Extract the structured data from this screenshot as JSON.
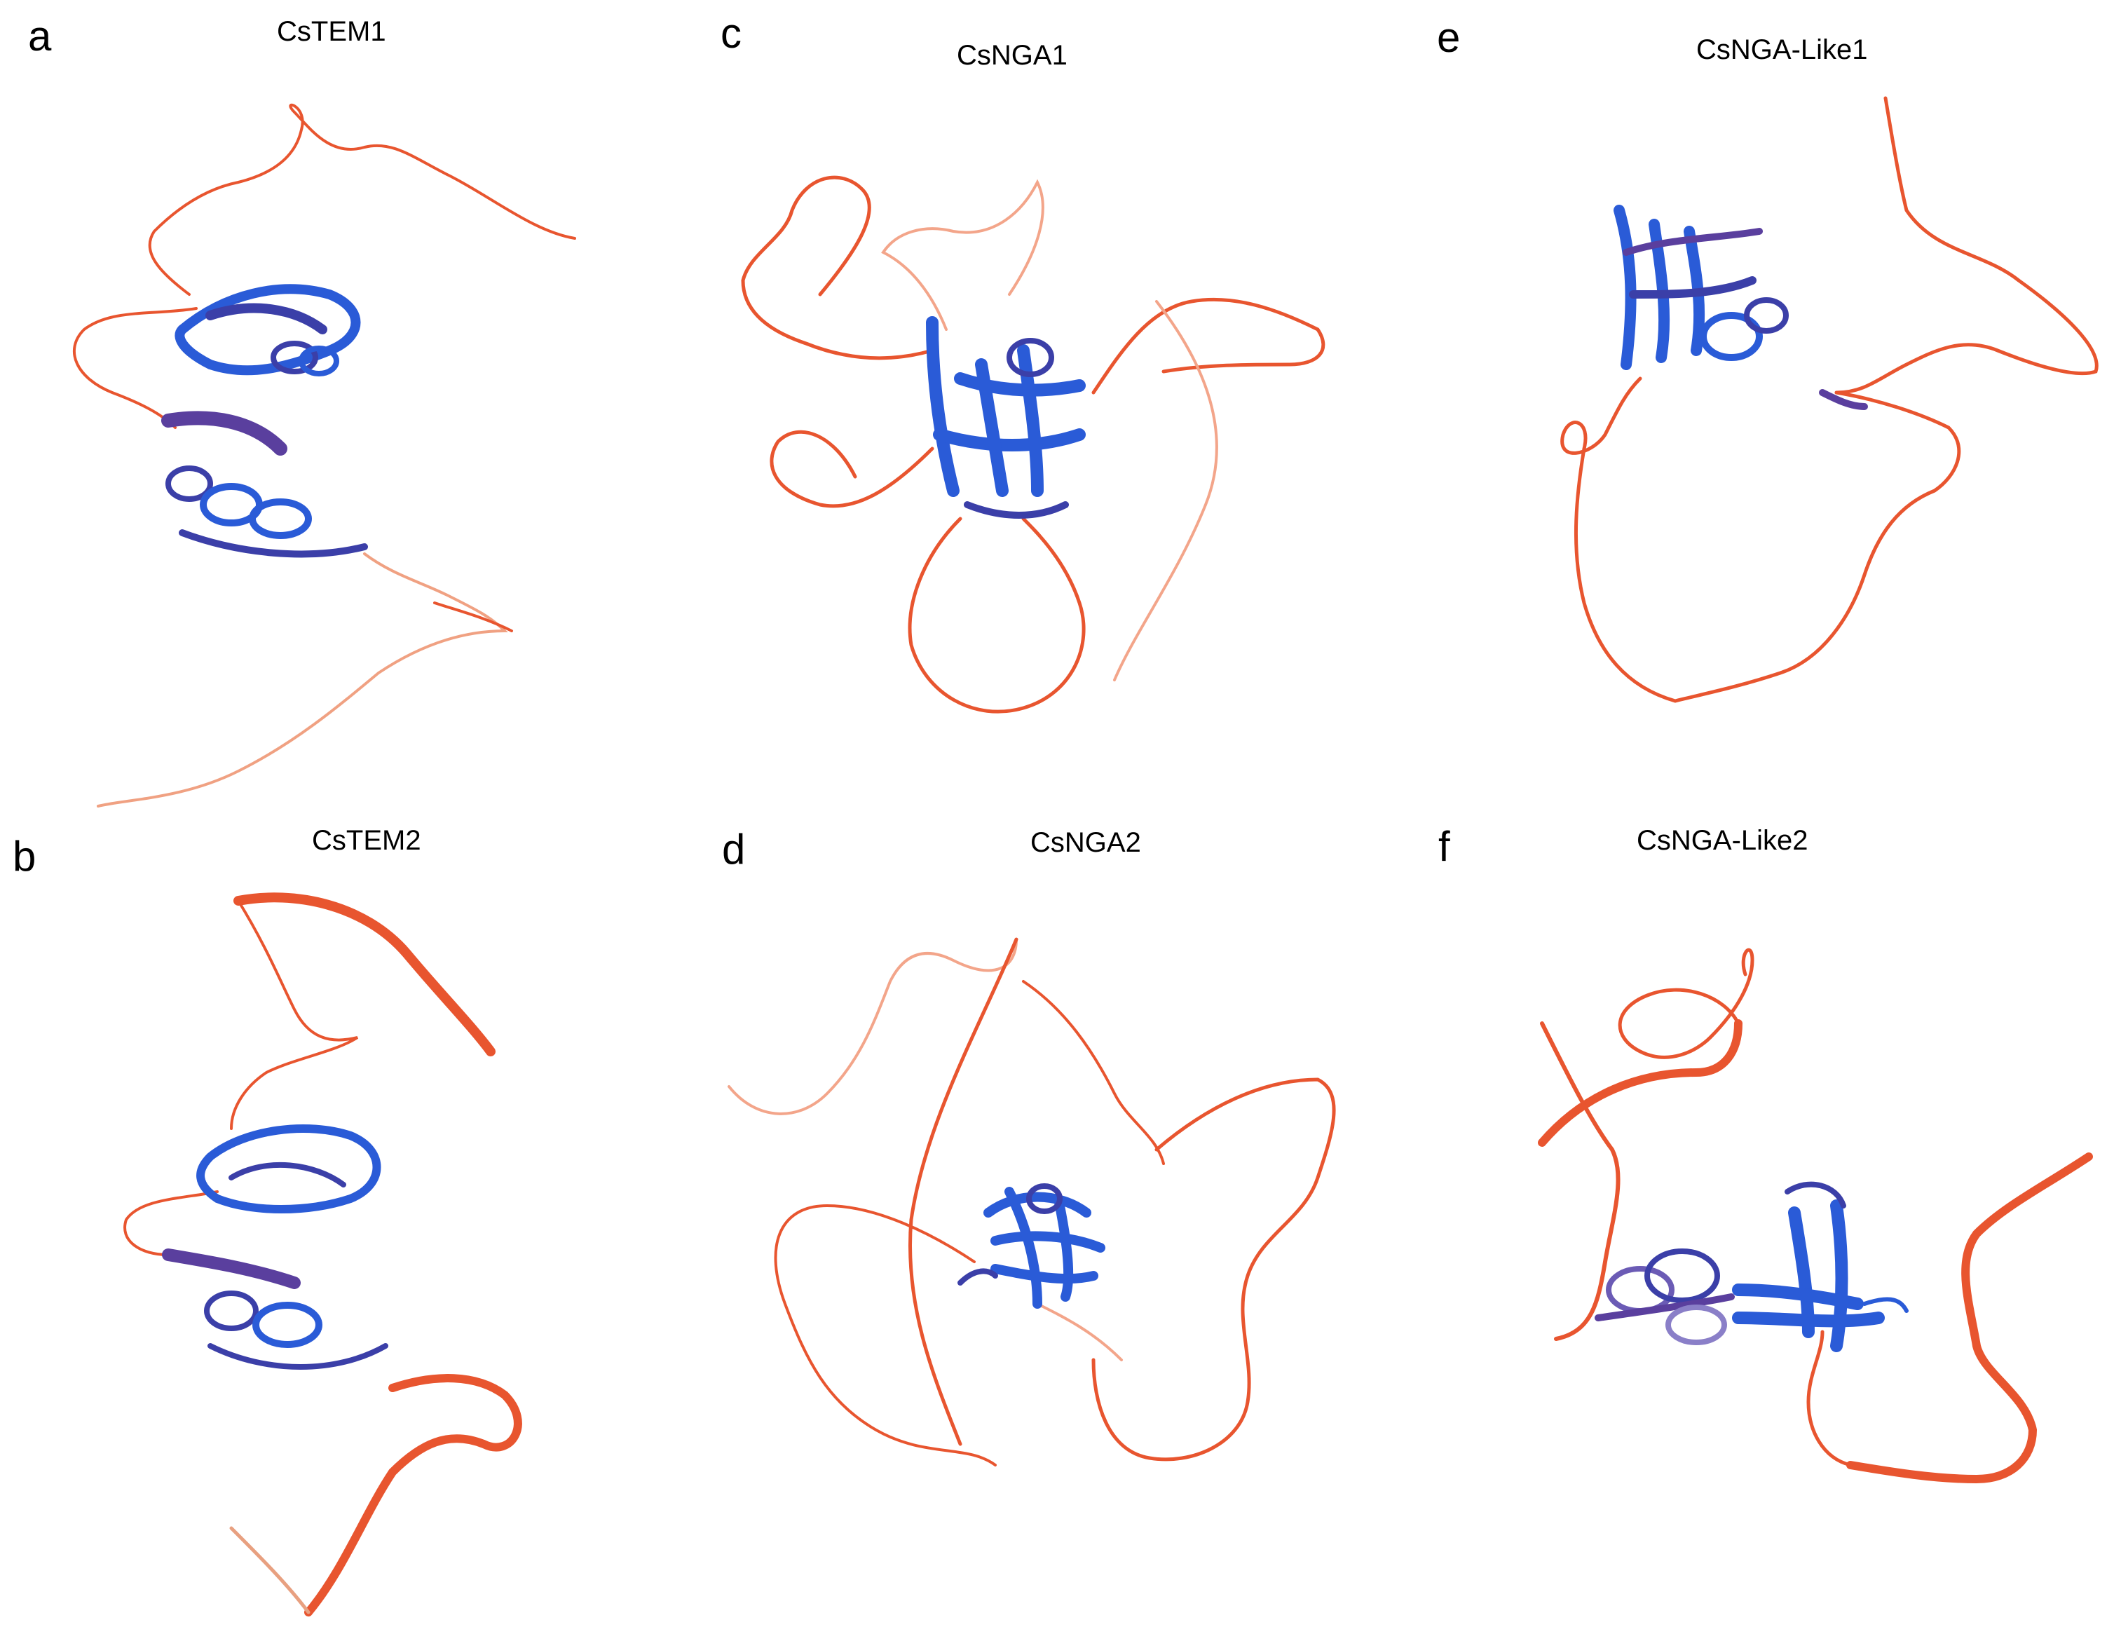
{
  "panels": [
    {
      "letter": "a",
      "title": "CsTEM1"
    },
    {
      "letter": "b",
      "title": "CsTEM2"
    },
    {
      "letter": "c",
      "title": "CsNGA1"
    },
    {
      "letter": "d",
      "title": "CsNGA2"
    },
    {
      "letter": "e",
      "title": "CsNGA-Like1"
    },
    {
      "letter": "f",
      "title": "CsNGA-Like2"
    }
  ],
  "colors": {
    "coil": "#e8552f",
    "coil_light": "#f3a58a",
    "domain": "#2a5bd7",
    "domain_dark": "#3b3fa8",
    "helix": "#5a3f9e"
  }
}
